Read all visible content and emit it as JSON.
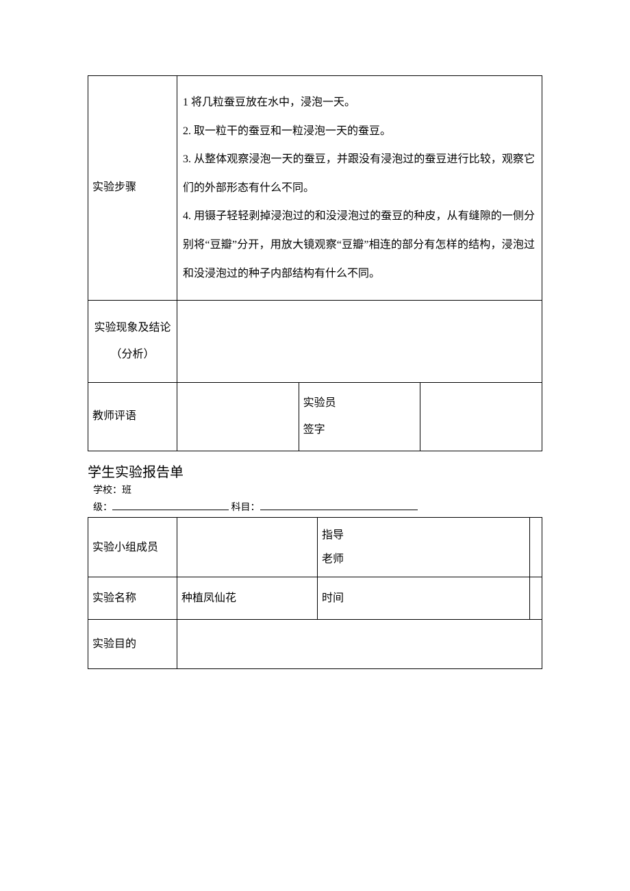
{
  "colors": {
    "border": "#000000",
    "background": "#ffffff",
    "text": "#000000"
  },
  "typography": {
    "body_font": "SimSun",
    "body_size_pt": 12,
    "title_size_pt": 15
  },
  "table1": {
    "steps_label": "实验步骤",
    "steps": [
      "1 将几粒蚕豆放在水中，浸泡一天。",
      "2. 取一粒干的蚕豆和一粒浸泡一天的蚕豆。",
      "3. 从整体观察浸泡一天的蚕豆，并跟没有浸泡过的蚕豆进行比较，观察它们的外部形态有什么不同。",
      "4. 用镊子轻轻剥掉浸泡过的和没浸泡过的蚕豆的种皮，从有缝隙的一侧分别将“豆瓣”分开，用放大镜观察“豆瓣”相连的部分有怎样的结构，浸泡过和没浸泡过的种子内部结构有什么不同。"
    ],
    "analysis_label_line1": "实验现象及结论",
    "analysis_label_line2": "（分析）",
    "teacher_label": "教师评语",
    "signer_label_line1": "实验员",
    "signer_label_line2": "签字"
  },
  "section2": {
    "title": "学生实验报告单",
    "school_label": "学校：",
    "class_label_line1": "班",
    "class_label_line2": "级：",
    "subject_label": "科目："
  },
  "table2": {
    "members_label": "实验小组成员",
    "advisor_label_line1": "指导",
    "advisor_label_line2": "老师",
    "name_label": "实验名称",
    "name_value": "种植凤仙花",
    "time_label": "时间",
    "purpose_label": "实验目的"
  }
}
